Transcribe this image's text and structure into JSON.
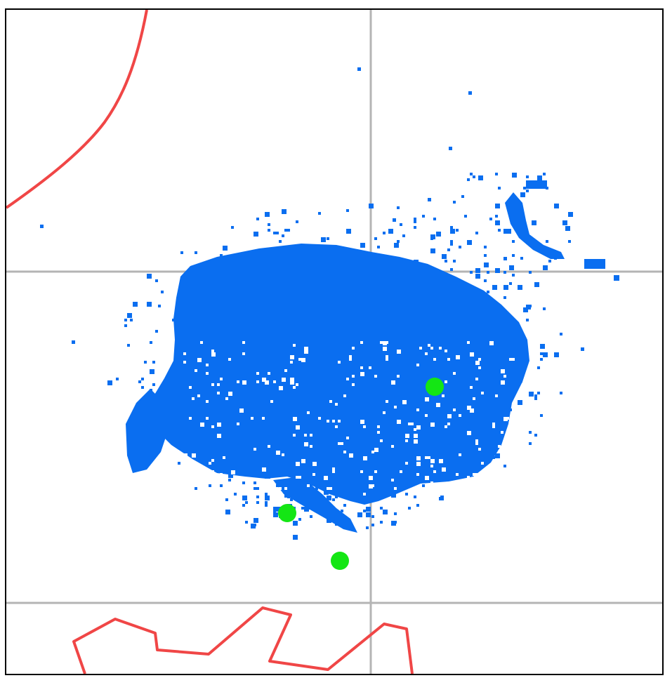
{
  "colors": {
    "background": "#ffffff",
    "frame": "#000000",
    "grid": "#b4b4b4",
    "density": "#0a6ef0",
    "marker": "#14e614",
    "boundary": "#f04646"
  },
  "grid_lines": {
    "vertical_count": 1,
    "horizontal_count": 2
  },
  "markers": [
    {
      "name": "marker-1"
    },
    {
      "name": "marker-2"
    },
    {
      "name": "marker-3"
    }
  ],
  "boundaries": [
    {
      "name": "upper-left-arc",
      "icon": "curve-line"
    },
    {
      "name": "lower-zigzag",
      "icon": "zigzag-line"
    }
  ]
}
